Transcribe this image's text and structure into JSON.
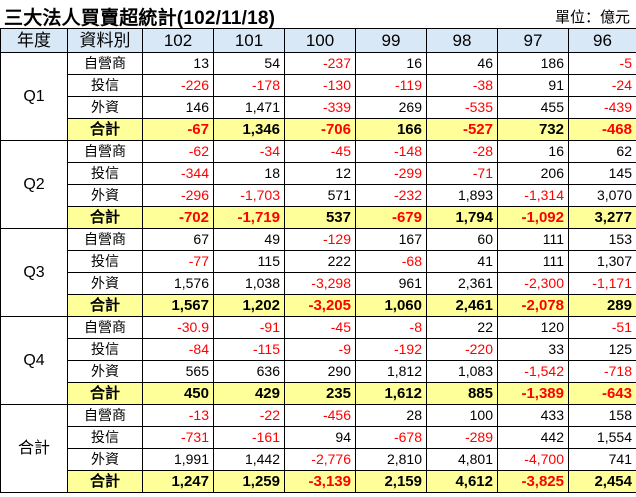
{
  "header": {
    "title": "三大法人買賣超統計(102/11/18)",
    "unit": "單位：億元"
  },
  "columns": [
    "年度",
    "資料別",
    "102",
    "101",
    "100",
    "99",
    "98",
    "97",
    "96"
  ],
  "groups": [
    {
      "label": "Q1",
      "rows": [
        {
          "label": "自營商",
          "values": [
            "13",
            "54",
            "-237",
            "16",
            "46",
            "186",
            "-5"
          ]
        },
        {
          "label": "投信",
          "values": [
            "-226",
            "-178",
            "-130",
            "-119",
            "-38",
            "91",
            "-24"
          ]
        },
        {
          "label": "外資",
          "values": [
            "146",
            "1,471",
            "-339",
            "269",
            "-535",
            "455",
            "-439"
          ]
        },
        {
          "label": "合計",
          "values": [
            "-67",
            "1,346",
            "-706",
            "166",
            "-527",
            "732",
            "-468"
          ]
        }
      ]
    },
    {
      "label": "Q2",
      "rows": [
        {
          "label": "自營商",
          "values": [
            "-62",
            "-34",
            "-45",
            "-148",
            "-28",
            "16",
            "62"
          ]
        },
        {
          "label": "投信",
          "values": [
            "-344",
            "18",
            "12",
            "-299",
            "-71",
            "206",
            "145"
          ]
        },
        {
          "label": "外資",
          "values": [
            "-296",
            "-1,703",
            "571",
            "-232",
            "1,893",
            "-1,314",
            "3,070"
          ]
        },
        {
          "label": "合計",
          "values": [
            "-702",
            "-1,719",
            "537",
            "-679",
            "1,794",
            "-1,092",
            "3,277"
          ]
        }
      ]
    },
    {
      "label": "Q3",
      "rows": [
        {
          "label": "自營商",
          "values": [
            "67",
            "49",
            "-129",
            "167",
            "60",
            "111",
            "153"
          ]
        },
        {
          "label": "投信",
          "values": [
            "-77",
            "115",
            "222",
            "-68",
            "41",
            "111",
            "1,307"
          ]
        },
        {
          "label": "外資",
          "values": [
            "1,576",
            "1,038",
            "-3,298",
            "961",
            "2,361",
            "-2,300",
            "-1,171"
          ]
        },
        {
          "label": "合計",
          "values": [
            "1,567",
            "1,202",
            "-3,205",
            "1,060",
            "2,461",
            "-2,078",
            "289"
          ]
        }
      ]
    },
    {
      "label": "Q4",
      "rows": [
        {
          "label": "自營商",
          "values": [
            "-30.9",
            "-91",
            "-45",
            "-8",
            "22",
            "120",
            "-51"
          ]
        },
        {
          "label": "投信",
          "values": [
            "-84",
            "-115",
            "-9",
            "-192",
            "-220",
            "33",
            "125"
          ]
        },
        {
          "label": "外資",
          "values": [
            "565",
            "636",
            "290",
            "1,812",
            "1,083",
            "-1,542",
            "-718"
          ]
        },
        {
          "label": "合計",
          "values": [
            "450",
            "429",
            "235",
            "1,612",
            "885",
            "-1,389",
            "-643"
          ]
        }
      ]
    },
    {
      "label": "合計",
      "rows": [
        {
          "label": "自營商",
          "values": [
            "-13",
            "-22",
            "-456",
            "28",
            "100",
            "433",
            "158"
          ]
        },
        {
          "label": "投信",
          "values": [
            "-731",
            "-161",
            "94",
            "-678",
            "-289",
            "442",
            "1,554"
          ]
        },
        {
          "label": "外資",
          "values": [
            "1,991",
            "1,442",
            "-2,776",
            "2,810",
            "4,801",
            "-4,700",
            "741"
          ]
        },
        {
          "label": "合計",
          "values": [
            "1,247",
            "1,259",
            "-3,139",
            "2,159",
            "4,612",
            "-3,825",
            "2,454"
          ]
        }
      ]
    }
  ],
  "colors": {
    "header_bg": "#d9e8f6",
    "total_bg": "#ffff99",
    "negative": "#ff0000"
  }
}
